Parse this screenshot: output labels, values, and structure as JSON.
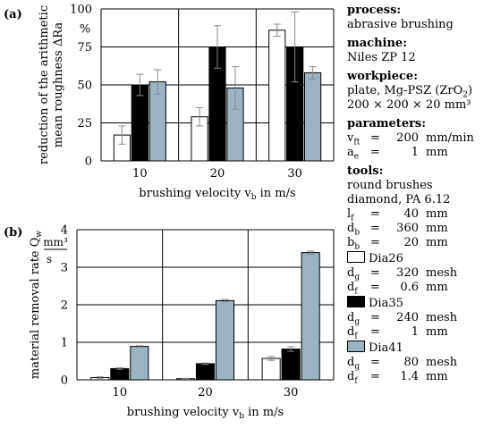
{
  "panels": {
    "a_label": "(a)",
    "b_label": "(b)"
  },
  "chart_data": [
    {
      "type": "bar",
      "title": "",
      "ylabel_line1": "reduction of the arithmetic",
      "ylabel_line2": "mean roughness ΔRa",
      "yunit": "%",
      "xlabel_main": "brushing velocity v",
      "xlabel_sub": "b",
      "xlabel_tail": " in m/s",
      "categories": [
        "10",
        "20",
        "30"
      ],
      "yticks": [
        "0",
        "25",
        "50",
        "75",
        "100"
      ],
      "ylim": [
        0,
        100
      ],
      "grid": true,
      "series": [
        {
          "name": "Dia26",
          "color": "#ffffff",
          "values": [
            17,
            29,
            86
          ],
          "err": [
            6,
            6,
            4
          ]
        },
        {
          "name": "Dia35",
          "color": "#000000",
          "values": [
            50,
            75,
            75
          ],
          "err": [
            7,
            14,
            23
          ]
        },
        {
          "name": "Dia41",
          "color": "#9bb4c4",
          "values": [
            52,
            48,
            58
          ],
          "err": [
            8,
            14,
            4
          ]
        }
      ]
    },
    {
      "type": "bar",
      "title": "",
      "ylabel_main": "material removal rate Q",
      "ylabel_sub": "w",
      "yunit_num": "mm³",
      "yunit_den": "s",
      "xlabel_main": "brushing velocity v",
      "xlabel_sub": "b",
      "xlabel_tail": " in m/s",
      "categories": [
        "10",
        "20",
        "30"
      ],
      "yticks": [
        "0",
        "1",
        "2",
        "3",
        "4"
      ],
      "ylim": [
        0,
        4
      ],
      "grid": true,
      "series": [
        {
          "name": "Dia26",
          "color": "#ffffff",
          "values": [
            0.06,
            0.03,
            0.57
          ],
          "err": [
            0.02,
            0.01,
            0.05
          ]
        },
        {
          "name": "Dia35",
          "color": "#000000",
          "values": [
            0.3,
            0.43,
            0.82
          ],
          "err": [
            0.02,
            0.02,
            0.06
          ]
        },
        {
          "name": "Dia41",
          "color": "#9bb4c4",
          "values": [
            0.89,
            2.11,
            3.39
          ],
          "err": [
            0.02,
            0.03,
            0.04
          ]
        }
      ]
    }
  ],
  "side": {
    "process_h": "process:",
    "process": "abrasive brushing",
    "machine_h": "machine:",
    "machine": "Niles ZP 12",
    "workpiece_h": "workpiece:",
    "workpiece_1a": "plate, Mg-PSZ (ZrO",
    "workpiece_1sub": "2",
    "workpiece_1b": ")",
    "workpiece_2": "200 × 200 × 20 mm³",
    "parameters_h": "parameters:",
    "params": [
      {
        "sym": "v",
        "sub": "ft",
        "eq": "=",
        "val": "200",
        "unit": "mm/min"
      },
      {
        "sym": "a",
        "sub": "e",
        "eq": "=",
        "val": "1",
        "unit": "mm"
      }
    ],
    "tools_h": "tools:",
    "tools_1": "round brushes",
    "tools_2": "diamond, PA 6.12",
    "brush": [
      {
        "sym": "l",
        "sub": "f",
        "eq": "=",
        "val": "40",
        "unit": "mm"
      },
      {
        "sym": "d",
        "sub": "b",
        "eq": "=",
        "val": "360",
        "unit": "mm"
      },
      {
        "sym": "b",
        "sub": "b",
        "eq": "=",
        "val": "20",
        "unit": "mm"
      }
    ],
    "tools_list": [
      {
        "name": "Dia26",
        "color": "#ffffff",
        "dg": {
          "sym": "d",
          "sub": "g",
          "eq": "=",
          "val": "320",
          "unit": "mesh"
        },
        "df": {
          "sym": "d",
          "sub": "f",
          "eq": "=",
          "val": "0.6",
          "unit": "mm"
        }
      },
      {
        "name": "Dia35",
        "color": "#000000",
        "dg": {
          "sym": "d",
          "sub": "g",
          "eq": "=",
          "val": "240",
          "unit": "mesh"
        },
        "df": {
          "sym": "d",
          "sub": "f",
          "eq": "=",
          "val": "1",
          "unit": "mm"
        }
      },
      {
        "name": "Dia41",
        "color": "#9bb4c4",
        "dg": {
          "sym": "d",
          "sub": "g",
          "eq": "=",
          "val": "80",
          "unit": "mesh"
        },
        "df": {
          "sym": "d",
          "sub": "f",
          "eq": "=",
          "val": "1.4",
          "unit": "mm"
        }
      }
    ]
  }
}
